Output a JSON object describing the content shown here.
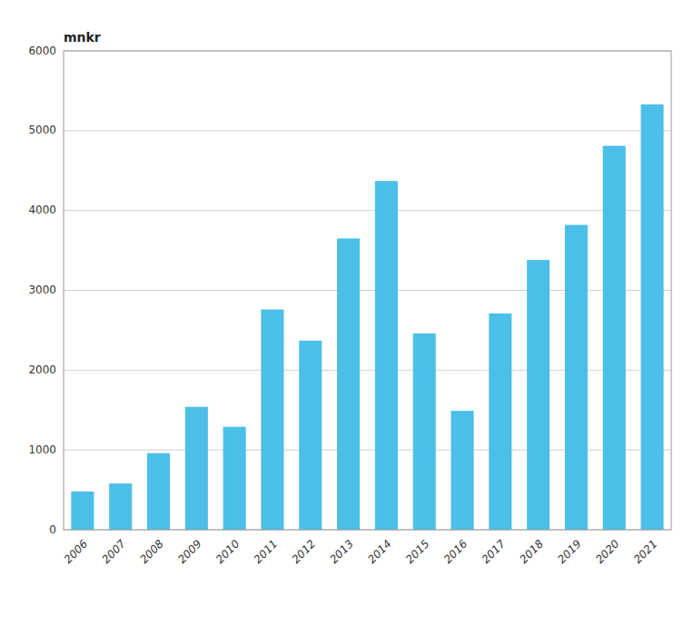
{
  "chart_data": {
    "type": "bar",
    "ylabel": "mnkr",
    "categories": [
      "2006",
      "2007",
      "2008",
      "2009",
      "2010",
      "2011",
      "2012",
      "2013",
      "2014",
      "2015",
      "2016",
      "2017",
      "2018",
      "2019",
      "2020",
      "2021"
    ],
    "values": [
      480,
      580,
      960,
      1540,
      1290,
      2760,
      2370,
      3650,
      4370,
      2460,
      1490,
      2710,
      3380,
      3820,
      4810,
      5330
    ],
    "color": "#4BBFE8",
    "ylim": [
      0,
      6000
    ],
    "yticks": [
      0,
      1000,
      2000,
      3000,
      4000,
      5000,
      6000
    ],
    "grid": true
  }
}
